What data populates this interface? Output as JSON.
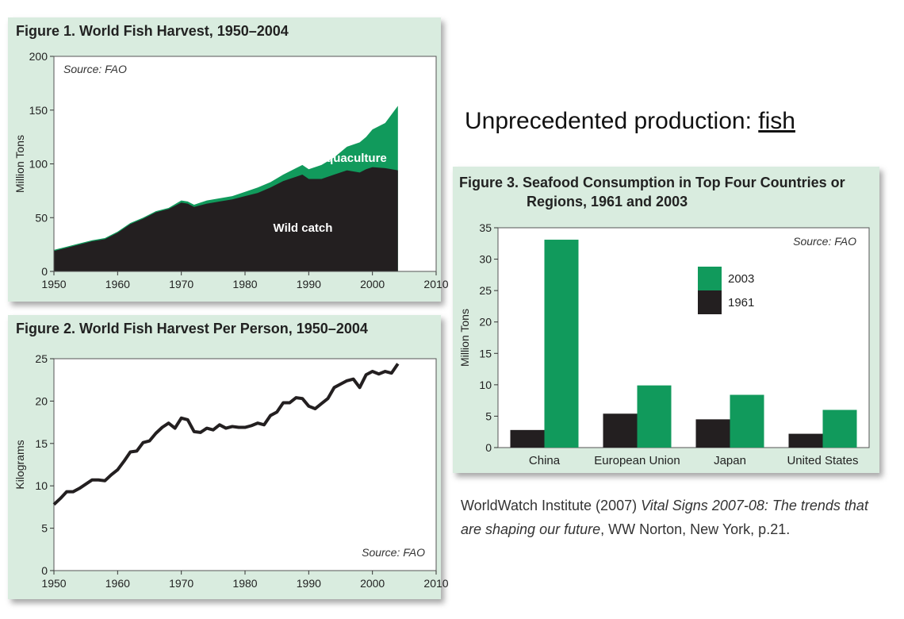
{
  "heading": {
    "text": "Unprecedented production: ",
    "link": "fish"
  },
  "citation": {
    "prefix": "WorldWatch Institute (2007) ",
    "italic": "Vital Signs 2007-08: The trends that are shaping our future",
    "suffix": ", WW Norton, New York, p.21."
  },
  "chart_data": [
    {
      "type": "area",
      "title": "Figure 1. World Fish Harvest, 1950–2004",
      "ylabel": "Million Tons",
      "source": "Source: FAO",
      "xlim": [
        1950,
        2010
      ],
      "ylim": [
        0,
        200
      ],
      "xticks": [
        1950,
        1960,
        1970,
        1980,
        1990,
        2000,
        2010
      ],
      "yticks": [
        0,
        50,
        100,
        150,
        200
      ],
      "annotations": [
        "Aquaculture",
        "Wild catch"
      ],
      "colors": {
        "wild": "#231f20",
        "aquaculture": "#119a5c"
      },
      "x": [
        1950,
        1952,
        1954,
        1956,
        1958,
        1960,
        1962,
        1964,
        1966,
        1968,
        1970,
        1971,
        1972,
        1974,
        1976,
        1978,
        1980,
        1982,
        1984,
        1986,
        1988,
        1989,
        1990,
        1992,
        1994,
        1996,
        1998,
        1999,
        2000,
        2002,
        2004
      ],
      "series": [
        {
          "name": "Wild catch",
          "values": [
            19,
            22,
            25,
            28,
            30,
            36,
            44,
            49,
            55,
            58,
            64,
            63,
            60,
            63,
            65,
            67,
            70,
            73,
            78,
            84,
            88,
            90,
            86,
            86,
            90,
            94,
            92,
            95,
            97,
            96,
            94
          ]
        },
        {
          "name": "Aquaculture",
          "values": [
            1,
            1,
            1,
            1,
            1,
            1,
            1,
            1,
            1,
            1,
            2,
            2,
            2,
            3,
            3,
            3,
            4,
            5,
            5,
            6,
            8,
            9,
            9,
            13,
            16,
            22,
            28,
            30,
            35,
            42,
            60
          ]
        }
      ]
    },
    {
      "type": "line",
      "title": "Figure 2. World Fish Harvest Per Person, 1950–2004",
      "ylabel": "Kilograms",
      "source": "Source: FAO",
      "xlim": [
        1950,
        2010
      ],
      "ylim": [
        0,
        25
      ],
      "xticks": [
        1950,
        1960,
        1970,
        1980,
        1990,
        2000,
        2010
      ],
      "yticks": [
        0,
        5,
        10,
        15,
        20,
        25
      ],
      "color": "#231f20",
      "x": [
        1950,
        1951,
        1952,
        1953,
        1954,
        1955,
        1956,
        1957,
        1958,
        1959,
        1960,
        1961,
        1962,
        1963,
        1964,
        1965,
        1966,
        1967,
        1968,
        1969,
        1970,
        1971,
        1972,
        1973,
        1974,
        1975,
        1976,
        1977,
        1978,
        1979,
        1980,
        1981,
        1982,
        1983,
        1984,
        1985,
        1986,
        1987,
        1988,
        1989,
        1990,
        1991,
        1992,
        1993,
        1994,
        1995,
        1996,
        1997,
        1998,
        1999,
        2000,
        2001,
        2002,
        2003,
        2004
      ],
      "values": [
        7.8,
        8.5,
        9.3,
        9.3,
        9.7,
        10.2,
        10.7,
        10.7,
        10.6,
        11.3,
        11.9,
        12.9,
        14.0,
        14.1,
        15.1,
        15.3,
        16.2,
        16.9,
        17.4,
        16.8,
        18.0,
        17.8,
        16.4,
        16.3,
        16.8,
        16.6,
        17.2,
        16.8,
        17.0,
        16.9,
        16.9,
        17.1,
        17.4,
        17.2,
        18.3,
        18.7,
        19.8,
        19.8,
        20.4,
        20.3,
        19.4,
        19.1,
        19.7,
        20.3,
        21.6,
        22.0,
        22.4,
        22.6,
        21.6,
        23.1,
        23.5,
        23.2,
        23.5,
        23.3,
        24.4
      ]
    },
    {
      "type": "bar",
      "title": "Figure 3. Seafood Consumption in Top Four Countries or",
      "title_line2": "Regions, 1961 and 2003",
      "ylabel": "Million Tons",
      "source": "Source: FAO",
      "ylim": [
        0,
        35
      ],
      "yticks": [
        0,
        5,
        10,
        15,
        20,
        25,
        30,
        35
      ],
      "categories": [
        "China",
        "European Union",
        "Japan",
        "United States"
      ],
      "legend_position": "upper-right",
      "series": [
        {
          "name": "1961",
          "color": "#231f20",
          "values": [
            2.8,
            5.4,
            4.5,
            2.2
          ]
        },
        {
          "name": "2003",
          "color": "#119a5c",
          "values": [
            33.1,
            9.9,
            8.4,
            6.0
          ]
        }
      ]
    }
  ]
}
